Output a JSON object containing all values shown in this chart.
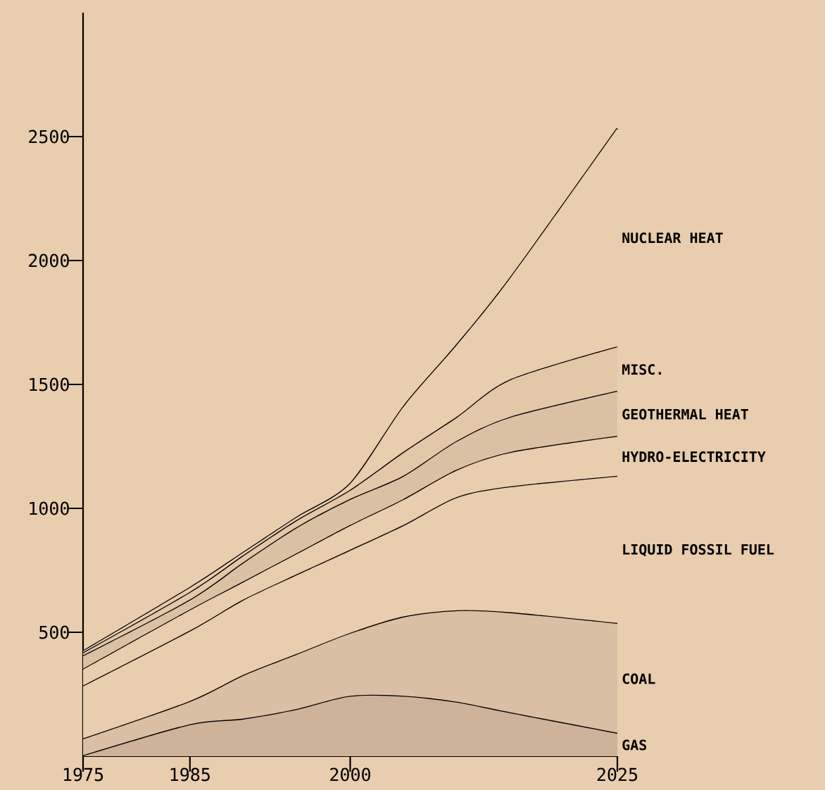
{
  "chart_data": {
    "type": "area",
    "stacked": true,
    "x": [
      1975,
      1985,
      1990,
      1995,
      2000,
      2005,
      2010,
      2015,
      2025
    ],
    "xlim": [
      1975,
      2025
    ],
    "xticks": [
      1975,
      1985,
      2000,
      2025
    ],
    "ylim": [
      0,
      3000
    ],
    "yticks": [
      500,
      1000,
      1500,
      2000,
      2500
    ],
    "series": [
      {
        "name": "GAS",
        "color": "#cdb399",
        "values": [
          0,
          125,
          148,
          187,
          240,
          240,
          216,
          173,
          91
        ]
      },
      {
        "name": "COAL",
        "color": "#d9bfa3",
        "values": [
          68,
          94,
          176,
          222,
          254,
          320,
          369,
          404,
          443
        ]
      },
      {
        "name": "LIQUID FOSSIL FUEL",
        "color": "#e8cdae",
        "values": [
          213,
          284,
          304,
          321,
          335,
          369,
          457,
          508,
          594
        ]
      },
      {
        "name": "HYDRO-ELECTRICITY",
        "color": "#e8cdae",
        "values": [
          68,
          85,
          73,
          85,
          100,
          105,
          111,
          139,
          161
        ]
      },
      {
        "name": "GEOTHERMAL HEAT",
        "color": "#dbc1a4",
        "values": [
          54,
          40,
          77,
          105,
          105,
          94,
          116,
          142,
          182
        ]
      },
      {
        "name": "MISC.",
        "color": "#e2c7a9",
        "values": [
          12,
          31,
          29,
          29,
          37,
          96,
          97,
          151,
          179
        ]
      },
      {
        "name": "NUCLEAR HEAT",
        "color": "#e8cdae",
        "values": [
          8,
          20,
          14,
          14,
          28,
          186,
          294,
          413,
          883
        ]
      }
    ]
  }
}
